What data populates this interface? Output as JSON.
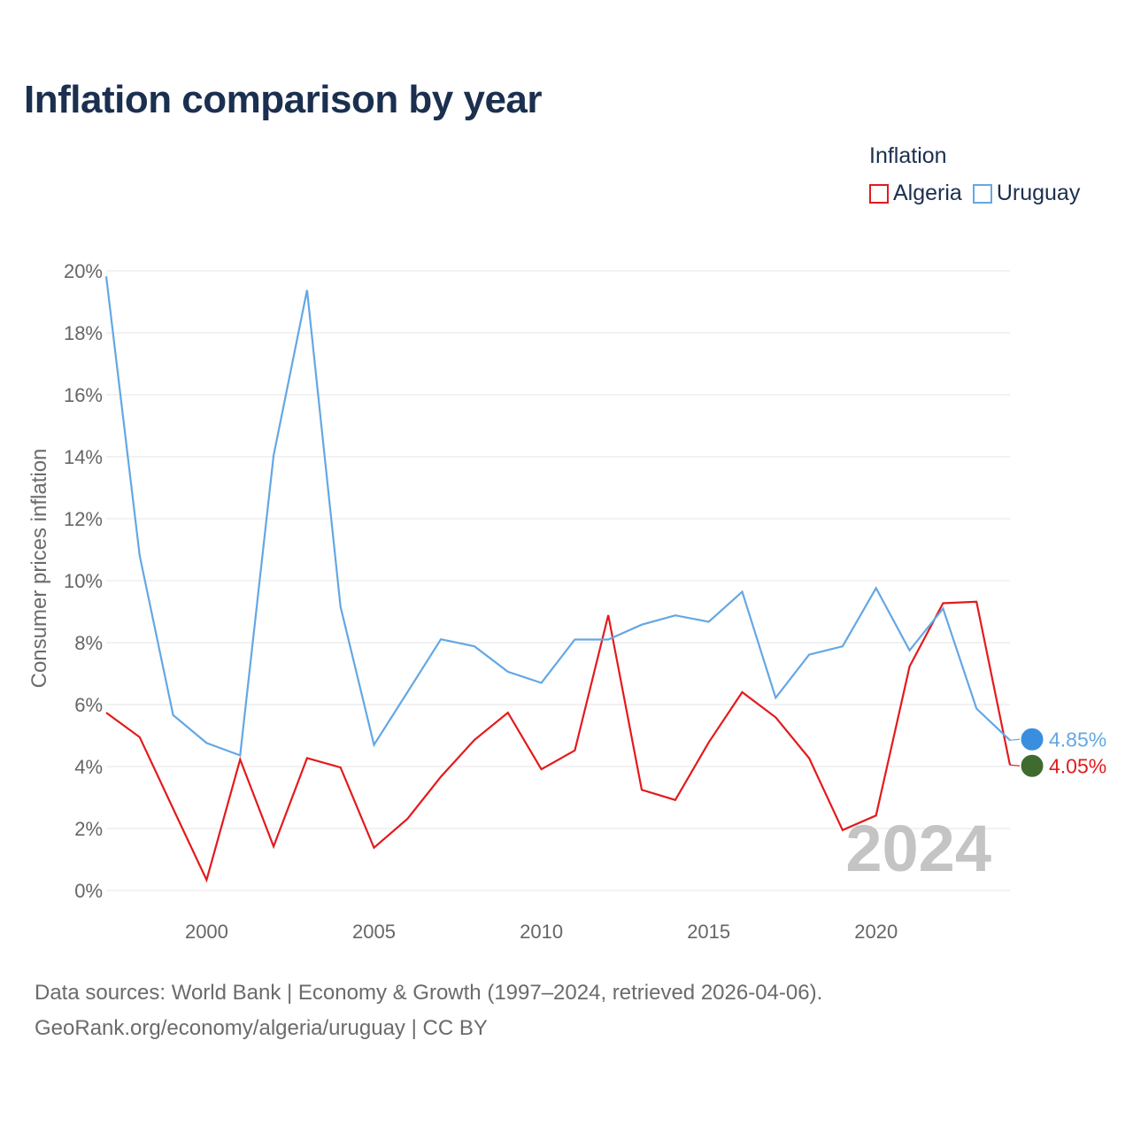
{
  "title": "Inflation comparison by year",
  "legend": {
    "title": "Inflation",
    "items": [
      {
        "label": "Algeria",
        "color": "#e31a1c"
      },
      {
        "label": "Uruguay",
        "color": "#64a7e4"
      }
    ]
  },
  "footer": {
    "line1": "Data sources: World Bank | Economy & Growth (1997–2024, retrieved 2026-04-06).",
    "line2": "GeoRank.org/economy/algeria/uruguay | CC BY"
  },
  "chart_data": {
    "type": "line",
    "title": "Inflation comparison by year",
    "xlabel": "",
    "ylabel": "Consumer prices inflation",
    "xlim": [
      1997,
      2024
    ],
    "ylim": [
      0,
      20
    ],
    "x_ticks": [
      2000,
      2005,
      2010,
      2015,
      2020
    ],
    "y_ticks": [
      {
        "value": 0,
        "label": "0%"
      },
      {
        "value": 2,
        "label": "2%"
      },
      {
        "value": 4,
        "label": "4%"
      },
      {
        "value": 6,
        "label": "6%"
      },
      {
        "value": 8,
        "label": "8%"
      },
      {
        "value": 10,
        "label": "10%"
      },
      {
        "value": 12,
        "label": "12%"
      },
      {
        "value": 14,
        "label": "14%"
      },
      {
        "value": 16,
        "label": "16%"
      },
      {
        "value": 18,
        "label": "18%"
      },
      {
        "value": 20,
        "label": "20%"
      }
    ],
    "year_watermark": "2024",
    "x": [
      1997,
      1998,
      1999,
      2000,
      2001,
      2002,
      2003,
      2004,
      2005,
      2006,
      2007,
      2008,
      2009,
      2010,
      2011,
      2012,
      2013,
      2014,
      2015,
      2016,
      2017,
      2018,
      2019,
      2020,
      2021,
      2022,
      2023,
      2024
    ],
    "series": [
      {
        "name": "Algeria",
        "color": "#e31a1c",
        "end_label": "4.05%",
        "values": [
          5.74,
          4.95,
          2.64,
          0.34,
          4.23,
          1.42,
          4.27,
          3.97,
          1.38,
          2.31,
          3.67,
          4.86,
          5.74,
          3.91,
          4.52,
          8.89,
          3.25,
          2.92,
          4.78,
          6.4,
          5.59,
          4.27,
          1.95,
          2.42,
          7.23,
          9.27,
          9.32,
          4.05
        ]
      },
      {
        "name": "Uruguay",
        "color": "#64a7e4",
        "end_label": "4.85%",
        "values": [
          19.82,
          10.81,
          5.66,
          4.76,
          4.36,
          14.04,
          19.38,
          9.16,
          4.7,
          6.4,
          8.11,
          7.88,
          7.06,
          6.7,
          8.1,
          8.1,
          8.58,
          8.88,
          8.67,
          9.64,
          6.22,
          7.61,
          7.88,
          9.76,
          7.75,
          9.1,
          5.87,
          4.85
        ]
      }
    ]
  }
}
